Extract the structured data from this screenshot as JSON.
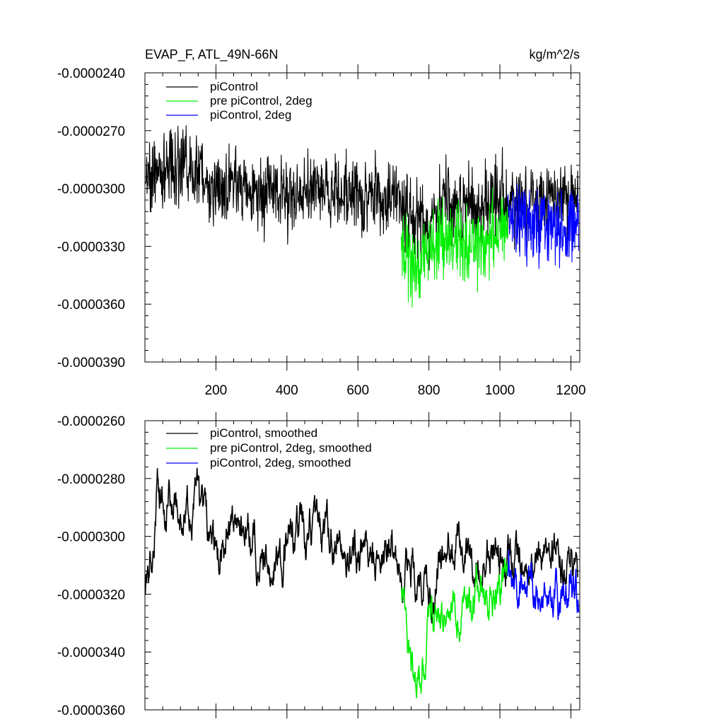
{
  "chart_data": [
    {
      "type": "line",
      "title": "EVAP_F, ATL_49N-66N",
      "units": "kg/m^2/s",
      "xlim": [
        0,
        1225
      ],
      "ylim": [
        -3.9e-05,
        -2.4e-05
      ],
      "x_ticks": [
        200,
        400,
        600,
        800,
        1000,
        1200
      ],
      "y_ticks": [
        -2.4e-05,
        -2.7e-05,
        -3e-05,
        -3.3e-05,
        -3.6e-05,
        -3.9e-05
      ],
      "y_tick_labels": [
        "-0.0000240",
        "-0.0000270",
        "-0.0000300",
        "-0.0000330",
        "-0.0000360",
        "-0.0000390"
      ],
      "smoothed": false,
      "grid": false,
      "legend_position": "top-left",
      "series": [
        {
          "name": "piControl",
          "color": "#000000",
          "x_range": [
            1,
            1220
          ],
          "values_by_x": [
            [
              0,
              -2.95e-05
            ],
            [
              50,
              -2.9e-05
            ],
            [
              100,
              -2.88e-05
            ],
            [
              150,
              -2.92e-05
            ],
            [
              200,
              -3e-05
            ],
            [
              250,
              -2.96e-05
            ],
            [
              300,
              -3e-05
            ],
            [
              400,
              -3.05e-05
            ],
            [
              500,
              -3e-05
            ],
            [
              600,
              -3.05e-05
            ],
            [
              700,
              -3.05e-05
            ],
            [
              750,
              -3.12e-05
            ],
            [
              800,
              -3.18e-05
            ],
            [
              850,
              -3.05e-05
            ],
            [
              900,
              -3.1e-05
            ],
            [
              1000,
              -3.05e-05
            ],
            [
              1100,
              -3.08e-05
            ],
            [
              1220,
              -3.06e-05
            ]
          ]
        },
        {
          "name": "pre piControl, 2deg",
          "color": "#00ee00",
          "x_range": [
            722,
            1022
          ],
          "values_by_x": [
            [
              722,
              -3.25e-05
            ],
            [
              760,
              -3.45e-05
            ],
            [
              800,
              -3.3e-05
            ],
            [
              850,
              -3.25e-05
            ],
            [
              900,
              -3.3e-05
            ],
            [
              950,
              -3.28e-05
            ],
            [
              1000,
              -3.22e-05
            ],
            [
              1022,
              -3.18e-05
            ]
          ]
        },
        {
          "name": "piControl, 2deg",
          "color": "#0000ff",
          "x_range": [
            1022,
            1222
          ],
          "values_by_x": [
            [
              1022,
              -3.15e-05
            ],
            [
              1050,
              -3.18e-05
            ],
            [
              1100,
              -3.18e-05
            ],
            [
              1150,
              -3.2e-05
            ],
            [
              1200,
              -3.18e-05
            ],
            [
              1222,
              -3.22e-05
            ]
          ]
        }
      ]
    },
    {
      "type": "line",
      "title": "",
      "units": "",
      "xlim": [
        0,
        1225
      ],
      "ylim": [
        -3.6e-05,
        -2.6e-05
      ],
      "x_ticks": [
        200,
        400,
        600,
        800,
        1000,
        1200
      ],
      "y_ticks": [
        -2.6e-05,
        -2.8e-05,
        -3e-05,
        -3.2e-05,
        -3.4e-05,
        -3.6e-05
      ],
      "y_tick_labels": [
        "-0.0000260",
        "-0.0000280",
        "-0.0000300",
        "-0.0000320",
        "-0.0000340",
        "-0.0000360"
      ],
      "smoothed": true,
      "grid": false,
      "legend_position": "top-left",
      "series": [
        {
          "name": "piControl, smoothed",
          "color": "#000000",
          "x_range": [
            1,
            1220
          ],
          "values_by_x": [
            [
              0,
              -3.18e-05
            ],
            [
              20,
              -3.05e-05
            ],
            [
              35,
              -2.83e-05
            ],
            [
              60,
              -2.88e-05
            ],
            [
              100,
              -2.9e-05
            ],
            [
              150,
              -2.88e-05
            ],
            [
              170,
              -2.96e-05
            ],
            [
              200,
              -3.12e-05
            ],
            [
              240,
              -2.98e-05
            ],
            [
              300,
              -3.02e-05
            ],
            [
              350,
              -3.08e-05
            ],
            [
              400,
              -3.02e-05
            ],
            [
              450,
              -3e-05
            ],
            [
              500,
              -2.99e-05
            ],
            [
              550,
              -3.03e-05
            ],
            [
              600,
              -3.05e-05
            ],
            [
              650,
              -3.06e-05
            ],
            [
              700,
              -3.04e-05
            ],
            [
              740,
              -3.08e-05
            ],
            [
              780,
              -3.2e-05
            ],
            [
              800,
              -3.2e-05
            ],
            [
              830,
              -3.12e-05
            ],
            [
              850,
              -3e-05
            ],
            [
              880,
              -3.03e-05
            ],
            [
              900,
              -3.12e-05
            ],
            [
              950,
              -3.1e-05
            ],
            [
              1000,
              -3.05e-05
            ],
            [
              1050,
              -3.12e-05
            ],
            [
              1100,
              -3.12e-05
            ],
            [
              1150,
              -3.07e-05
            ],
            [
              1200,
              -3.08e-05
            ],
            [
              1220,
              -3.18e-05
            ]
          ]
        },
        {
          "name": "pre piControl, 2deg, smoothed",
          "color": "#00ee00",
          "x_range": [
            722,
            1022
          ],
          "values_by_x": [
            [
              722,
              -3.23e-05
            ],
            [
              740,
              -3.33e-05
            ],
            [
              750,
              -3.5e-05
            ],
            [
              770,
              -3.43e-05
            ],
            [
              790,
              -3.4e-05
            ],
            [
              810,
              -3.3e-05
            ],
            [
              840,
              -3.25e-05
            ],
            [
              870,
              -3.3e-05
            ],
            [
              900,
              -3.25e-05
            ],
            [
              930,
              -3.22e-05
            ],
            [
              960,
              -3.2e-05
            ],
            [
              990,
              -3.2e-05
            ],
            [
              1010,
              -3.16e-05
            ],
            [
              1022,
              -3.14e-05
            ]
          ]
        },
        {
          "name": "piControl, 2deg, smoothed",
          "color": "#0000ff",
          "x_range": [
            1022,
            1222
          ],
          "values_by_x": [
            [
              1022,
              -3.14e-05
            ],
            [
              1050,
              -3.17e-05
            ],
            [
              1080,
              -3.16e-05
            ],
            [
              1100,
              -3.18e-05
            ],
            [
              1130,
              -3.2e-05
            ],
            [
              1150,
              -3.23e-05
            ],
            [
              1170,
              -3.24e-05
            ],
            [
              1190,
              -3.18e-05
            ],
            [
              1210,
              -3.14e-05
            ],
            [
              1222,
              -3.24e-05
            ]
          ]
        }
      ]
    }
  ]
}
